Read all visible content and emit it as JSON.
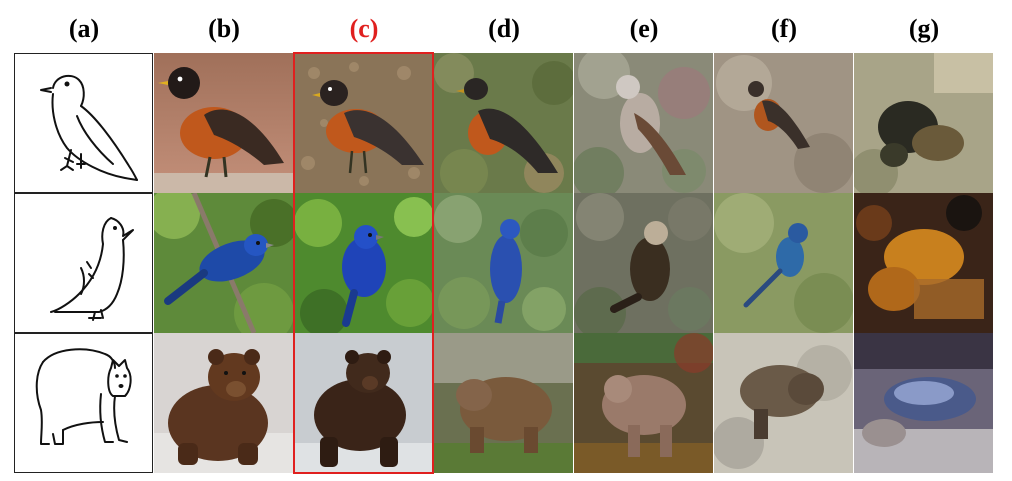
{
  "columns": [
    "(a)",
    "(b)",
    "(c)",
    "(d)",
    "(e)",
    "(f)",
    "(g)"
  ],
  "highlight_column": "(c)",
  "highlight_color": "#e0201f",
  "rows": [
    {
      "subject": "bird-robin"
    },
    {
      "subject": "bird-indigo-bunting"
    },
    {
      "subject": "brown-bear"
    }
  ]
}
